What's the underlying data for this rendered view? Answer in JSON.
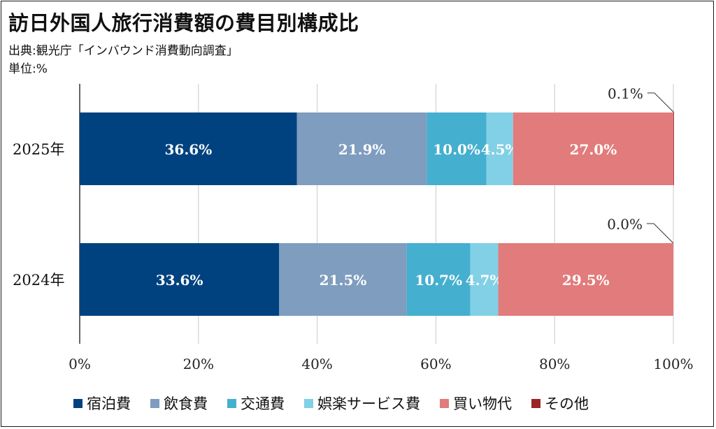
{
  "title": "訪日外国人旅行消費額の費目別構成比",
  "source": "出典:観光庁「インバウンド消費動向調査」",
  "unit": "単位:%",
  "colors": {
    "accommodation": "#00427f",
    "food": "#7e9dbf",
    "transport": "#45afcf",
    "entertainment": "#81d0e6",
    "shopping": "#e27b7b",
    "other": "#9a2323",
    "grid": "#c8c8c8",
    "axis": "#333333"
  },
  "chart_data": {
    "type": "bar",
    "orientation": "horizontal",
    "stacked": true,
    "title": "訪日外国人旅行消費額の費目別構成比",
    "xlim": [
      0,
      100
    ],
    "x_ticks": [
      "0%",
      "20%",
      "40%",
      "60%",
      "80%",
      "100%"
    ],
    "x_tick_values": [
      0,
      20,
      40,
      60,
      80,
      100
    ],
    "grid": true,
    "legend_position": "bottom",
    "categories": [
      "2025年",
      "2024年"
    ],
    "series": [
      {
        "name": "宿泊費",
        "color_key": "accommodation",
        "values": [
          36.6,
          33.6
        ],
        "labels": [
          "36.6%",
          "33.6%"
        ]
      },
      {
        "name": "飲食費",
        "color_key": "food",
        "values": [
          21.9,
          21.5
        ],
        "labels": [
          "21.9%",
          "21.5%"
        ]
      },
      {
        "name": "交通費",
        "color_key": "transport",
        "values": [
          10.0,
          10.7
        ],
        "labels": [
          "10.0%",
          "10.7%"
        ]
      },
      {
        "name": "娯楽サービス費",
        "color_key": "entertainment",
        "values": [
          4.5,
          4.7
        ],
        "labels": [
          "4.5%",
          "4.7%"
        ]
      },
      {
        "name": "買い物代",
        "color_key": "shopping",
        "values": [
          27.0,
          29.5
        ],
        "labels": [
          "27.0%",
          "29.5%"
        ]
      },
      {
        "name": "その他",
        "color_key": "other",
        "values": [
          0.1,
          0.0
        ],
        "labels": [
          "0.1%",
          "0.0%"
        ]
      }
    ]
  }
}
